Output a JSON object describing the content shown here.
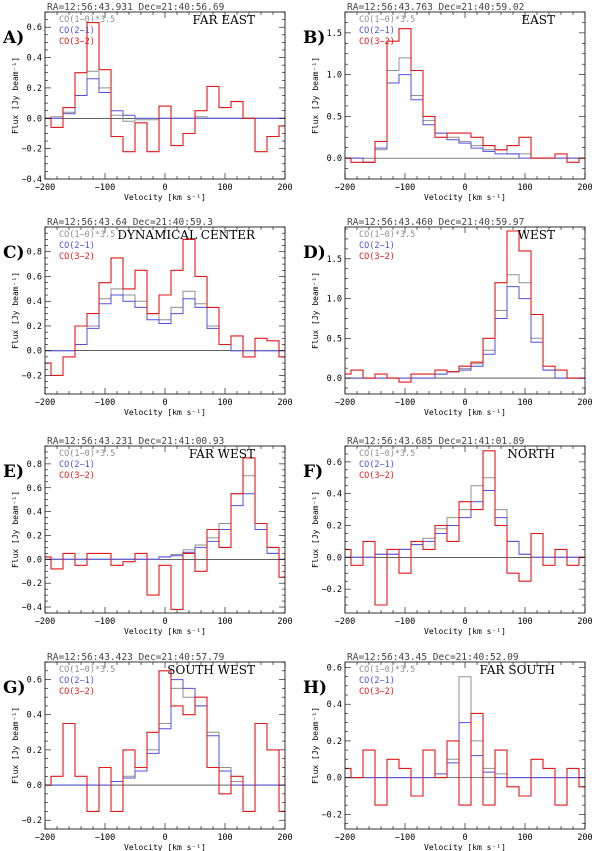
{
  "figure": {
    "xlabel": "Velocity [km s⁻¹]",
    "ylabel": "Flux [Jy beam⁻¹]",
    "legend": [
      "CO(1−0)*3.5",
      "CO(2−1)",
      "CO(3−2)"
    ],
    "colors": {
      "co10": "#909090",
      "co21": "#5050e0",
      "co32": "#e01818",
      "frame": "#000000"
    }
  },
  "chart_data": [
    {
      "type": "line",
      "panel_letter": "A)",
      "region": "FAR EAST",
      "coords": "RA=12:56:43.931 Dec=21:40:56.69",
      "xlim": [
        -200,
        200
      ],
      "ylim": [
        -0.4,
        0.7
      ],
      "yticks": [
        -0.4,
        -0.2,
        0.0,
        0.2,
        0.4,
        0.6
      ],
      "yfmt": 1,
      "x": [
        -200,
        -180,
        -160,
        -140,
        -120,
        -100,
        -80,
        -60,
        -40,
        -20,
        0,
        20,
        40,
        60,
        80,
        100,
        120,
        140,
        160,
        180,
        200
      ],
      "series": [
        {
          "name": "CO(1−0)*3.5",
          "values": [
            0.0,
            0.01,
            0.04,
            0.15,
            0.31,
            0.2,
            0.02,
            -0.02,
            -0.01,
            -0.01,
            0.0,
            0.0,
            0.0,
            0.01,
            0.0,
            0.0,
            0.0,
            0.0,
            0.0,
            0.0,
            0.0
          ]
        },
        {
          "name": "CO(2−1)",
          "values": [
            0.0,
            0.0,
            0.03,
            0.15,
            0.26,
            0.17,
            0.05,
            0.02,
            0.0,
            0.0,
            0.0,
            0.0,
            0.0,
            0.0,
            0.0,
            0.0,
            0.0,
            0.0,
            0.0,
            0.0,
            0.0
          ]
        },
        {
          "name": "CO(3−2)",
          "values": [
            0.0,
            -0.06,
            0.07,
            0.3,
            0.63,
            0.32,
            -0.12,
            -0.22,
            -0.03,
            -0.22,
            0.08,
            -0.18,
            -0.1,
            0.05,
            0.21,
            0.07,
            0.11,
            0.0,
            -0.22,
            -0.12,
            -0.05
          ]
        }
      ]
    },
    {
      "type": "line",
      "panel_letter": "B)",
      "region": "EAST",
      "coords": "RA=12:56:43.763 Dec=21:40:59.02",
      "xlim": [
        -200,
        200
      ],
      "ylim": [
        -0.25,
        1.75
      ],
      "yticks": [
        0.0,
        0.5,
        1.0,
        1.5
      ],
      "yfmt": 1,
      "x": [
        -200,
        -180,
        -160,
        -140,
        -120,
        -100,
        -80,
        -60,
        -40,
        -20,
        0,
        20,
        40,
        60,
        80,
        100,
        120,
        140,
        160,
        180,
        200
      ],
      "series": [
        {
          "name": "CO(1−0)*3.5",
          "values": [
            0.0,
            0.0,
            -0.05,
            0.1,
            1.05,
            1.2,
            0.75,
            0.45,
            0.3,
            0.25,
            0.2,
            0.15,
            0.1,
            0.1,
            0.05,
            0.05,
            0.0,
            0.0,
            0.0,
            0.0,
            0.0
          ]
        },
        {
          "name": "CO(2−1)",
          "values": [
            0.0,
            0.0,
            -0.05,
            0.12,
            0.9,
            1.0,
            0.7,
            0.4,
            0.3,
            0.22,
            0.18,
            0.12,
            0.08,
            0.05,
            0.05,
            0.0,
            0.0,
            0.0,
            0.0,
            0.0,
            0.0
          ]
        },
        {
          "name": "CO(3−2)",
          "values": [
            0.0,
            -0.05,
            -0.05,
            0.2,
            1.4,
            1.55,
            1.05,
            0.5,
            0.25,
            0.3,
            0.3,
            0.25,
            0.15,
            0.1,
            0.15,
            0.25,
            0.0,
            0.0,
            0.05,
            -0.05,
            0.0
          ]
        }
      ]
    },
    {
      "type": "line",
      "panel_letter": "C)",
      "region": "DYNAMICAL CENTER",
      "coords": "RA=12:56:43.64 Dec=21:40:59.3",
      "xlim": [
        -200,
        200
      ],
      "ylim": [
        -0.35,
        1.0
      ],
      "yticks": [
        -0.2,
        0.0,
        0.2,
        0.4,
        0.6,
        0.8
      ],
      "yfmt": 1,
      "x": [
        -200,
        -180,
        -160,
        -140,
        -120,
        -100,
        -80,
        -60,
        -40,
        -20,
        0,
        20,
        40,
        60,
        80,
        100,
        120,
        140,
        160,
        180,
        200
      ],
      "series": [
        {
          "name": "CO(1−0)*3.5",
          "values": [
            0.0,
            0.0,
            0.0,
            0.05,
            0.2,
            0.42,
            0.5,
            0.45,
            0.4,
            0.3,
            0.25,
            0.35,
            0.48,
            0.38,
            0.2,
            0.05,
            0.0,
            0.0,
            0.0,
            0.0,
            0.0
          ]
        },
        {
          "name": "CO(2−1)",
          "values": [
            0.0,
            0.0,
            0.0,
            0.05,
            0.18,
            0.38,
            0.45,
            0.4,
            0.35,
            0.25,
            0.22,
            0.3,
            0.42,
            0.35,
            0.18,
            0.05,
            0.0,
            0.0,
            0.0,
            0.0,
            0.0
          ]
        },
        {
          "name": "CO(3−2)",
          "values": [
            -0.1,
            -0.2,
            -0.05,
            0.2,
            0.3,
            0.55,
            0.75,
            0.5,
            0.65,
            0.3,
            0.45,
            0.65,
            0.9,
            0.6,
            0.35,
            0.05,
            0.12,
            -0.05,
            0.1,
            0.08,
            -0.05
          ]
        }
      ]
    },
    {
      "type": "line",
      "panel_letter": "D)",
      "region": "WEST",
      "coords": "RA=12:56:43.460 Dec=21:40:59.97",
      "xlim": [
        -200,
        200
      ],
      "ylim": [
        -0.2,
        1.9
      ],
      "yticks": [
        0.0,
        0.5,
        1.0,
        1.5
      ],
      "yfmt": 1,
      "x": [
        -200,
        -180,
        -160,
        -140,
        -120,
        -100,
        -80,
        -60,
        -40,
        -20,
        0,
        20,
        40,
        60,
        80,
        100,
        120,
        140,
        160,
        180,
        200
      ],
      "series": [
        {
          "name": "CO(1−0)*3.5",
          "values": [
            0.0,
            0.0,
            0.0,
            0.0,
            0.0,
            0.0,
            0.0,
            0.0,
            0.05,
            0.08,
            0.12,
            0.18,
            0.35,
            0.85,
            1.3,
            1.2,
            0.5,
            0.1,
            0.0,
            0.0,
            0.0
          ]
        },
        {
          "name": "CO(2−1)",
          "values": [
            0.0,
            0.0,
            0.0,
            0.0,
            0.0,
            0.0,
            0.0,
            0.0,
            0.05,
            0.08,
            0.1,
            0.15,
            0.3,
            0.75,
            1.15,
            1.0,
            0.45,
            0.1,
            0.0,
            0.0,
            0.0
          ]
        },
        {
          "name": "CO(3−2)",
          "values": [
            0.05,
            0.1,
            0.0,
            0.05,
            0.0,
            -0.05,
            0.05,
            0.05,
            0.1,
            0.08,
            0.15,
            0.2,
            0.5,
            1.2,
            1.85,
            1.6,
            0.8,
            0.15,
            0.1,
            0.0,
            0.0
          ]
        }
      ]
    },
    {
      "type": "line",
      "panel_letter": "E)",
      "region": "FAR WEST",
      "coords": "RA=12:56:43.231 Dec=21:41:00.93",
      "xlim": [
        -200,
        200
      ],
      "ylim": [
        -0.45,
        0.95
      ],
      "yticks": [
        -0.4,
        -0.2,
        0.0,
        0.2,
        0.4,
        0.6,
        0.8
      ],
      "yfmt": 1,
      "x": [
        -200,
        -180,
        -160,
        -140,
        -120,
        -100,
        -80,
        -60,
        -40,
        -20,
        0,
        20,
        40,
        60,
        80,
        100,
        120,
        140,
        160,
        180,
        200
      ],
      "series": [
        {
          "name": "CO(1−0)*3.5",
          "values": [
            0.0,
            0.0,
            0.0,
            0.0,
            0.0,
            0.0,
            0.0,
            0.0,
            0.0,
            0.0,
            0.02,
            0.04,
            0.08,
            0.12,
            0.18,
            0.3,
            0.55,
            0.7,
            0.3,
            0.05,
            0.0
          ]
        },
        {
          "name": "CO(2−1)",
          "values": [
            0.0,
            0.0,
            0.0,
            0.0,
            0.0,
            0.0,
            0.0,
            0.0,
            0.0,
            0.0,
            0.02,
            0.03,
            0.06,
            0.1,
            0.15,
            0.25,
            0.45,
            0.55,
            0.25,
            0.05,
            0.0
          ]
        },
        {
          "name": "CO(3−2)",
          "values": [
            0.02,
            -0.08,
            0.05,
            -0.05,
            0.05,
            0.05,
            -0.05,
            -0.02,
            0.05,
            -0.3,
            -0.05,
            -0.42,
            0.05,
            -0.1,
            0.25,
            0.1,
            0.55,
            0.85,
            0.3,
            0.1,
            -0.15
          ]
        }
      ]
    },
    {
      "type": "line",
      "panel_letter": "F)",
      "region": "NORTH",
      "coords": "RA=12:56:43.685 Dec=21:41:01.89",
      "xlim": [
        -200,
        200
      ],
      "ylim": [
        -0.35,
        0.7
      ],
      "yticks": [
        -0.2,
        0.0,
        0.2,
        0.4,
        0.6
      ],
      "yfmt": 1,
      "x": [
        -200,
        -180,
        -160,
        -140,
        -120,
        -100,
        -80,
        -60,
        -40,
        -20,
        0,
        20,
        40,
        60,
        80,
        100,
        120,
        140,
        160,
        180,
        200
      ],
      "series": [
        {
          "name": "CO(1−0)*3.5",
          "values": [
            0.0,
            0.0,
            0.0,
            0.02,
            0.02,
            0.05,
            0.08,
            0.12,
            0.18,
            0.25,
            0.3,
            0.45,
            0.5,
            0.3,
            0.1,
            0.02,
            0.0,
            0.0,
            0.0,
            0.0,
            0.0
          ]
        },
        {
          "name": "CO(2−1)",
          "values": [
            0.0,
            0.0,
            0.0,
            0.02,
            0.02,
            0.05,
            0.08,
            0.1,
            0.15,
            0.2,
            0.25,
            0.35,
            0.42,
            0.25,
            0.1,
            0.02,
            0.0,
            0.0,
            0.0,
            0.0,
            0.0
          ]
        },
        {
          "name": "CO(3−2)",
          "values": [
            0.05,
            -0.05,
            0.1,
            -0.3,
            0.05,
            -0.1,
            0.1,
            0.05,
            0.2,
            0.1,
            0.35,
            0.3,
            0.67,
            0.2,
            -0.1,
            -0.15,
            0.15,
            -0.05,
            0.05,
            -0.05,
            0.0
          ]
        }
      ]
    },
    {
      "type": "line",
      "panel_letter": "G)",
      "region": "SOUTH WEST",
      "coords": "RA=12:56:43.423 Dec=21:40:57.79",
      "xlim": [
        -200,
        200
      ],
      "ylim": [
        -0.25,
        0.7
      ],
      "yticks": [
        -0.2,
        0.0,
        0.2,
        0.4,
        0.6
      ],
      "yfmt": 1,
      "x": [
        -200,
        -180,
        -160,
        -140,
        -120,
        -100,
        -80,
        -60,
        -40,
        -20,
        0,
        20,
        40,
        60,
        80,
        100,
        120,
        140,
        160,
        180,
        200
      ],
      "series": [
        {
          "name": "CO(1−0)*3.5",
          "values": [
            0.0,
            0.0,
            0.0,
            0.0,
            0.0,
            0.0,
            0.02,
            0.05,
            0.1,
            0.2,
            0.35,
            0.55,
            0.5,
            0.45,
            0.3,
            0.1,
            0.02,
            0.0,
            0.0,
            0.0,
            0.0
          ]
        },
        {
          "name": "CO(2−1)",
          "values": [
            0.0,
            0.0,
            0.0,
            0.0,
            0.0,
            0.0,
            0.02,
            0.04,
            0.08,
            0.18,
            0.32,
            0.6,
            0.55,
            0.45,
            0.28,
            0.08,
            0.0,
            0.0,
            0.0,
            0.0,
            0.0
          ]
        },
        {
          "name": "CO(3−2)",
          "values": [
            0.0,
            0.05,
            0.35,
            0.05,
            -0.15,
            0.1,
            -0.15,
            0.2,
            0.1,
            0.3,
            0.65,
            0.45,
            0.4,
            0.5,
            0.1,
            -0.05,
            0.05,
            -0.15,
            0.35,
            0.2,
            -0.15
          ]
        }
      ]
    },
    {
      "type": "line",
      "panel_letter": "H)",
      "region": "FAR SOUTH",
      "coords": "RA=12:56:43.45 Dec=21:40:52.09",
      "xlim": [
        -200,
        200
      ],
      "ylim": [
        -0.28,
        0.63
      ],
      "yticks": [
        -0.2,
        0.0,
        0.2,
        0.4,
        0.6
      ],
      "yfmt": 1,
      "x": [
        -200,
        -180,
        -160,
        -140,
        -120,
        -100,
        -80,
        -60,
        -40,
        -20,
        0,
        20,
        40,
        60,
        80,
        100,
        120,
        140,
        160,
        180,
        200
      ],
      "series": [
        {
          "name": "CO(1−0)*3.5",
          "values": [
            0.0,
            0.0,
            0.0,
            0.0,
            0.0,
            0.0,
            0.0,
            0.0,
            0.0,
            0.1,
            0.55,
            0.2,
            0.05,
            0.02,
            0.0,
            0.0,
            0.0,
            0.0,
            0.0,
            0.0,
            0.0
          ]
        },
        {
          "name": "CO(2−1)",
          "values": [
            0.0,
            0.0,
            0.0,
            0.0,
            0.0,
            0.0,
            0.0,
            0.0,
            0.02,
            0.08,
            0.3,
            0.12,
            0.03,
            0.0,
            0.0,
            0.0,
            0.0,
            0.0,
            0.0,
            0.0,
            0.0
          ]
        },
        {
          "name": "CO(3−2)",
          "values": [
            0.05,
            0.0,
            0.15,
            -0.15,
            0.1,
            0.05,
            -0.1,
            0.15,
            0.0,
            0.2,
            -0.15,
            0.35,
            -0.15,
            0.15,
            -0.05,
            -0.1,
            0.1,
            0.05,
            -0.15,
            0.05,
            -0.05
          ]
        }
      ]
    }
  ]
}
